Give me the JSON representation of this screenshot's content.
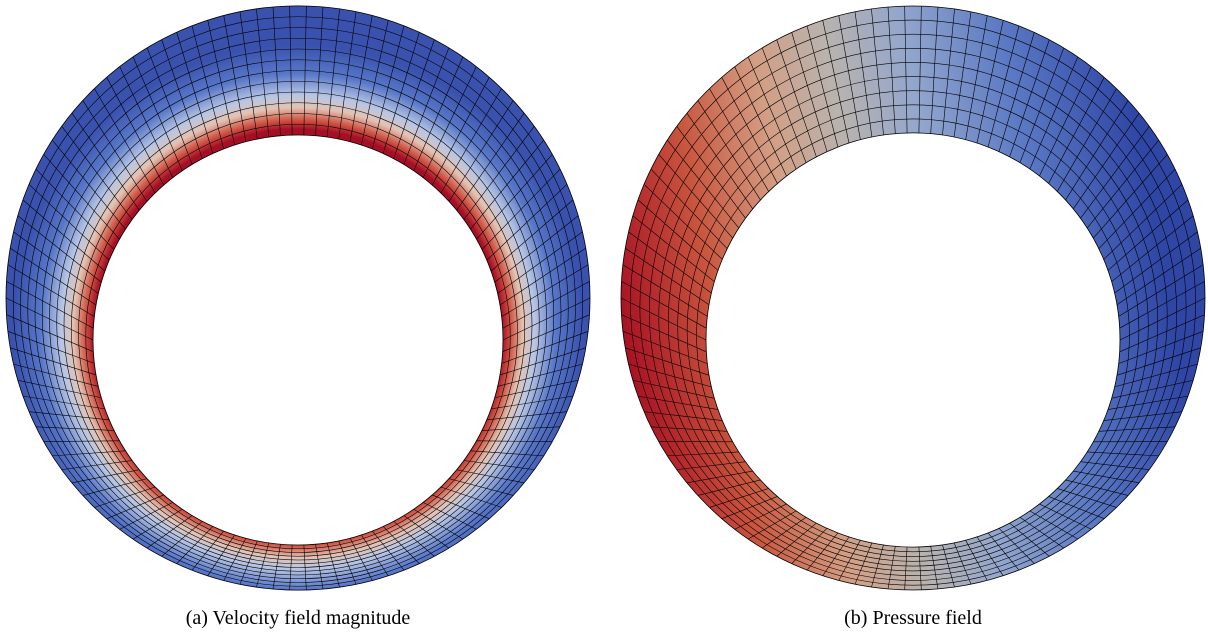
{
  "figure": {
    "panels": [
      {
        "caption": "(a) Velocity field magnitude"
      },
      {
        "caption": "(b) Pressure field"
      }
    ]
  }
}
